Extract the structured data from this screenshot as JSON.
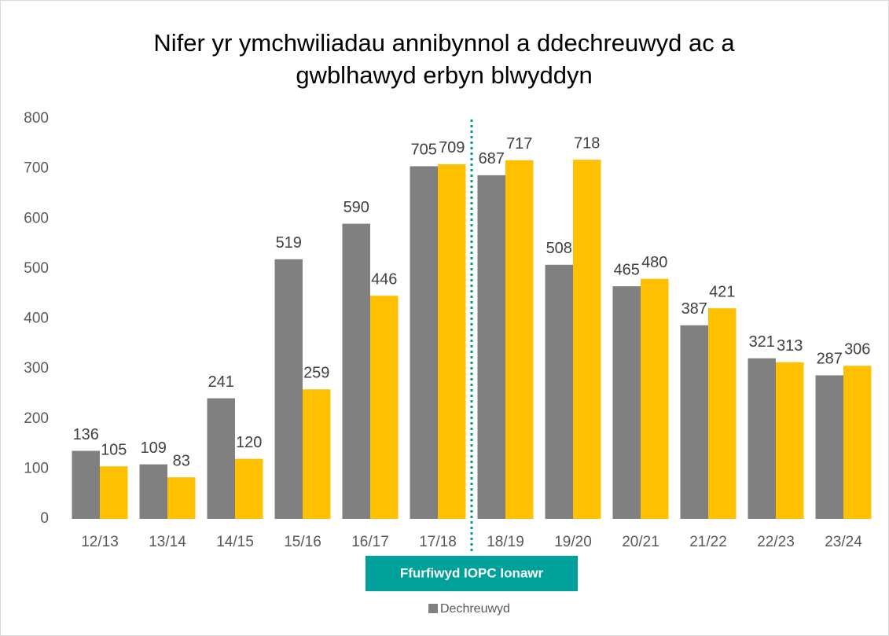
{
  "chart_data": {
    "type": "bar",
    "title": [
      "Nifer yr ymchwiliadau annibynnol a ddechreuwyd ac a",
      "gwblhawyd erbyn blwyddyn"
    ],
    "categories": [
      "12/13",
      "13/14",
      "14/15",
      "15/16",
      "16/17",
      "17/18",
      "18/19",
      "19/20",
      "20/21",
      "21/22",
      "22/23",
      "23/24"
    ],
    "series": [
      {
        "name": "Dechreuwyd",
        "color": "#808080",
        "values": [
          136,
          109,
          241,
          519,
          590,
          705,
          687,
          508,
          465,
          387,
          321,
          287
        ]
      },
      {
        "color": "#ffc000",
        "values": [
          105,
          83,
          120,
          259,
          446,
          709,
          717,
          718,
          480,
          421,
          313,
          306
        ]
      }
    ],
    "ylim": [
      0,
      800
    ],
    "yticks": [
      0,
      100,
      200,
      300,
      400,
      500,
      600,
      700,
      800
    ],
    "grid": false,
    "annotation": "Ffurfiwyd IOPC Ionawr",
    "legend": "bottom"
  }
}
